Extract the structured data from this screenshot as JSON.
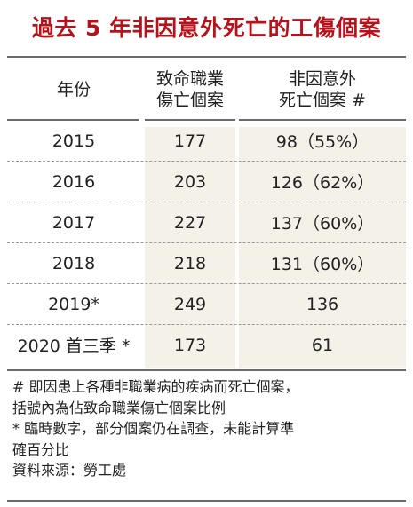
{
  "title": "過去 5 年非因意外死亡的工傷個案",
  "table": {
    "headers": {
      "year": "年份",
      "fatal_line1": "致命職業",
      "fatal_line2": "傷亡個案",
      "nonacc_line1": "非因意外",
      "nonacc_line2": "死亡個案 #"
    },
    "rows": [
      {
        "year": "2015",
        "fatal": "177",
        "non_accidental": "98（55%）"
      },
      {
        "year": "2016",
        "fatal": "203",
        "non_accidental": "126（62%）"
      },
      {
        "year": "2017",
        "fatal": "227",
        "non_accidental": "137（60%）"
      },
      {
        "year": "2018",
        "fatal": "218",
        "non_accidental": "131（60%）"
      },
      {
        "year": "2019*",
        "fatal": "249",
        "non_accidental": "136"
      },
      {
        "year": "2020 首三季 *",
        "fatal": "173",
        "non_accidental": "61"
      }
    ]
  },
  "notes": {
    "line1": "# 即因患上各種非職業病的疾病而死亡個案，",
    "line2": "括號內為佔致命職業傷亡個案比例",
    "line3": "* 臨時數字，部分個案仍在調查，未能計算準",
    "line4": "確百分比",
    "line5": "資料來源：勞工處"
  },
  "colors": {
    "title": "#b5121b",
    "shade": "#f4f1e8",
    "rule": "#6a6a6a"
  }
}
